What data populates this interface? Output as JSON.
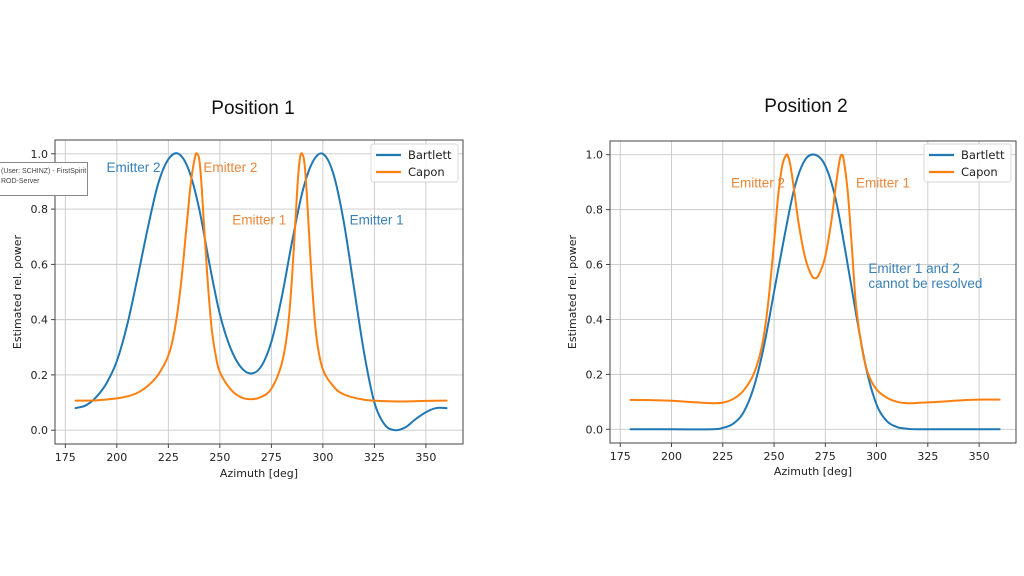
{
  "colors": {
    "bartlett": "#1f77b4",
    "capon": "#ff7f0e",
    "annot_blue": "#3a7fb5",
    "annot_orange": "#e8873a",
    "grid": "#c8c8c8",
    "frame": "#444444"
  },
  "tooltip": {
    "line1": "(User: SCHINZ) - FirstSpirit",
    "line2": "ROD-Server"
  },
  "chart_data": [
    {
      "type": "line",
      "title": "Position 1",
      "xlabel": "Azimuth [deg]",
      "ylabel": "Estimated rel. power",
      "xlim": [
        170,
        368
      ],
      "ylim": [
        -0.05,
        1.05
      ],
      "xticks": [
        175,
        200,
        225,
        250,
        275,
        300,
        325,
        350
      ],
      "xtick_labels": [
        "175",
        "200",
        "225",
        "250",
        "275",
        "300",
        "325",
        "350"
      ],
      "yticks": [
        0.0,
        0.2,
        0.4,
        0.6,
        0.8,
        1.0
      ],
      "ytick_labels": [
        "0.0",
        "0.2",
        "0.4",
        "0.6",
        "0.8",
        "1.0"
      ],
      "grid": true,
      "legend": {
        "placement": "top-right",
        "entries": [
          "Bartlett",
          "Capon"
        ]
      },
      "series": [
        {
          "name": "Bartlett",
          "x": [
            180,
            185,
            190,
            195,
            200,
            205,
            210,
            215,
            220,
            225,
            230,
            235,
            240,
            245,
            250,
            255,
            260,
            265,
            270,
            275,
            280,
            285,
            290,
            295,
            300,
            305,
            310,
            315,
            320,
            325,
            330,
            335,
            340,
            345,
            350,
            355,
            360
          ],
          "values": [
            0.08,
            0.09,
            0.12,
            0.17,
            0.25,
            0.38,
            0.55,
            0.73,
            0.89,
            0.98,
            1.0,
            0.94,
            0.8,
            0.6,
            0.42,
            0.3,
            0.23,
            0.205,
            0.23,
            0.32,
            0.48,
            0.68,
            0.86,
            0.97,
            1.0,
            0.93,
            0.76,
            0.52,
            0.28,
            0.1,
            0.02,
            0.0,
            0.01,
            0.04,
            0.065,
            0.08,
            0.08
          ]
        },
        {
          "name": "Capon",
          "x": [
            180,
            190,
            200,
            205,
            210,
            215,
            220,
            225,
            228,
            231,
            234,
            236,
            238,
            239,
            240,
            241,
            242,
            244,
            246,
            248,
            250,
            255,
            260,
            265,
            270,
            275,
            280,
            283,
            285,
            287,
            288,
            289,
            290,
            291,
            292,
            293,
            295,
            297,
            300,
            305,
            310,
            320,
            330,
            340,
            350,
            360
          ],
          "values": [
            0.107,
            0.108,
            0.115,
            0.122,
            0.135,
            0.16,
            0.2,
            0.27,
            0.36,
            0.52,
            0.75,
            0.9,
            0.99,
            1.0,
            0.98,
            0.9,
            0.78,
            0.55,
            0.37,
            0.27,
            0.21,
            0.15,
            0.12,
            0.112,
            0.12,
            0.15,
            0.24,
            0.37,
            0.55,
            0.8,
            0.92,
            0.99,
            1.0,
            0.97,
            0.88,
            0.75,
            0.5,
            0.33,
            0.22,
            0.16,
            0.13,
            0.11,
            0.105,
            0.104,
            0.106,
            0.107
          ]
        }
      ],
      "annotations": [
        {
          "text": "Emitter 2",
          "color_key": "annot_blue",
          "x": 195,
          "y": 0.935
        },
        {
          "text": "Emitter 2",
          "color_key": "annot_orange",
          "x": 242,
          "y": 0.935
        },
        {
          "text": "Emitter 1",
          "color_key": "annot_orange",
          "x": 256,
          "y": 0.745
        },
        {
          "text": "Emitter 1",
          "color_key": "annot_blue",
          "x": 313,
          "y": 0.745
        }
      ]
    },
    {
      "type": "line",
      "title": "Position 2",
      "xlabel": "Azimuth [deg]",
      "ylabel": "Estimated rel. power",
      "xlim": [
        170,
        368
      ],
      "ylim": [
        -0.05,
        1.05
      ],
      "xticks": [
        175,
        200,
        225,
        250,
        275,
        300,
        325,
        350
      ],
      "xtick_labels": [
        "175",
        "200",
        "225",
        "250",
        "275",
        "300",
        "325",
        "350"
      ],
      "yticks": [
        0.0,
        0.2,
        0.4,
        0.6,
        0.8,
        1.0
      ],
      "ytick_labels": [
        "0.0",
        "0.2",
        "0.4",
        "0.6",
        "0.8",
        "1.0"
      ],
      "grid": true,
      "legend": {
        "placement": "top-right",
        "entries": [
          "Bartlett",
          "Capon"
        ]
      },
      "series": [
        {
          "name": "Bartlett",
          "x": [
            180,
            200,
            220,
            225,
            230,
            235,
            240,
            245,
            250,
            255,
            260,
            265,
            270,
            275,
            280,
            285,
            290,
            295,
            300,
            305,
            310,
            315,
            320,
            340,
            360
          ],
          "values": [
            0.0,
            0.0,
            0.0,
            0.005,
            0.02,
            0.06,
            0.15,
            0.3,
            0.5,
            0.7,
            0.88,
            0.98,
            1.0,
            0.96,
            0.84,
            0.64,
            0.42,
            0.22,
            0.09,
            0.03,
            0.008,
            0.002,
            0.0,
            0.0,
            0.0
          ]
        },
        {
          "name": "Capon",
          "x": [
            180,
            190,
            200,
            210,
            220,
            225,
            230,
            235,
            240,
            244,
            247,
            250,
            252,
            254,
            256,
            257,
            258,
            260,
            262,
            265,
            268,
            270,
            272,
            275,
            278,
            280,
            282,
            283,
            284,
            286,
            288,
            290,
            293,
            296,
            300,
            305,
            310,
            315,
            320,
            330,
            340,
            350,
            360
          ],
          "values": [
            0.107,
            0.106,
            0.104,
            0.099,
            0.095,
            0.097,
            0.11,
            0.14,
            0.2,
            0.3,
            0.45,
            0.68,
            0.85,
            0.96,
            1.0,
            0.99,
            0.96,
            0.86,
            0.75,
            0.63,
            0.565,
            0.55,
            0.565,
            0.63,
            0.76,
            0.88,
            0.98,
            1.0,
            0.98,
            0.86,
            0.66,
            0.45,
            0.29,
            0.2,
            0.145,
            0.115,
            0.1,
            0.095,
            0.096,
            0.1,
            0.105,
            0.108,
            0.108
          ]
        }
      ],
      "annotations": [
        {
          "text": "Emitter 2",
          "color_key": "annot_orange",
          "x": 229,
          "y": 0.88
        },
        {
          "text": "Emitter 1",
          "color_key": "annot_orange",
          "x": 290,
          "y": 0.88
        },
        {
          "text": "Emitter 1 and 2",
          "color_key": "annot_blue",
          "x": 296,
          "y": 0.57
        },
        {
          "text": "cannot be resolved",
          "color_key": "annot_blue",
          "x": 296,
          "y": 0.515
        }
      ]
    }
  ]
}
